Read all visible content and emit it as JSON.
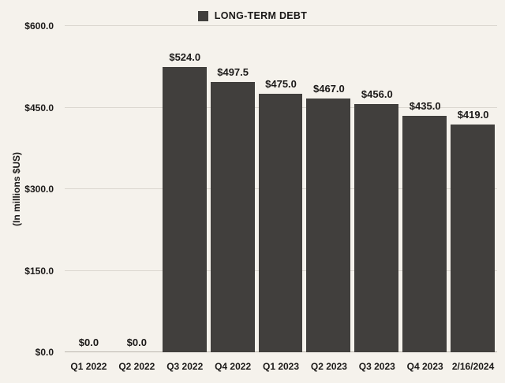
{
  "chart_data": {
    "type": "bar",
    "title": "",
    "legend": "LONG-TERM DEBT",
    "legend_position": "top",
    "ylabel": "(In millions $US)",
    "xlabel": "",
    "categories": [
      "Q1 2022",
      "Q2 2022",
      "Q3 2022",
      "Q4 2022",
      "Q1 2023",
      "Q2 2023",
      "Q3 2023",
      "Q4 2023",
      "2/16/2024"
    ],
    "values": [
      0.0,
      0.0,
      524.0,
      497.5,
      475.0,
      467.0,
      456.0,
      435.0,
      419.0
    ],
    "bar_labels": [
      "$0.0",
      "$0.0",
      "$524.0",
      "$497.5",
      "$475.0",
      "$467.0",
      "$456.0",
      "$435.0",
      "$419.0"
    ],
    "ylim": [
      0,
      600
    ],
    "yticks": [
      0,
      150,
      300,
      450,
      600
    ],
    "ytick_labels": [
      "$0.0",
      "$150.0",
      "$300.0",
      "$450.0",
      "$600.0"
    ],
    "grid": true,
    "colors": {
      "bar": "#413f3d",
      "background": "#f5f2ec",
      "gridline": "#dbd7d0",
      "baseline": "#b9b5ad",
      "text": "#1b1918"
    }
  }
}
